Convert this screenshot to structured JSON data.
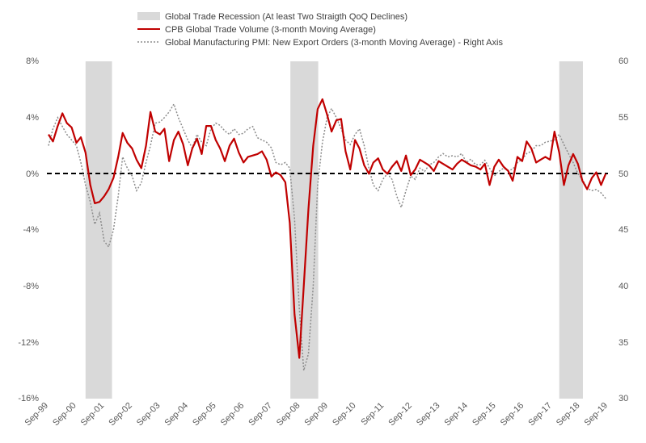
{
  "chart_data": {
    "type": "line",
    "legend": [
      {
        "key": "recession",
        "label": "Global Trade Recession (At least Two Straigth QoQ Declines)",
        "color": "#d9d9d9"
      },
      {
        "key": "volume",
        "label": "CPB Global Trade Volume (3-month Moving Average)",
        "color": "#c00000"
      },
      {
        "key": "pmi",
        "label": "Global Manufacturing PMI: New Export Orders (3-month Moving Average) - Right Axis",
        "color": "#8c8c8c"
      }
    ],
    "legend_position": "top-center",
    "x_ticks": [
      "Sep-99",
      "Sep-00",
      "Sep-01",
      "Sep-02",
      "Sep-03",
      "Sep-04",
      "Sep-05",
      "Sep-06",
      "Sep-07",
      "Sep-08",
      "Sep-09",
      "Sep-10",
      "Sep-11",
      "Sep-12",
      "Sep-13",
      "Sep-14",
      "Sep-15",
      "Sep-16",
      "Sep-17",
      "Sep-18",
      "Sep-19"
    ],
    "x_range": [
      1999.67,
      2019.75
    ],
    "y_left": {
      "ticks": [
        "8%",
        "4%",
        "0%",
        "-4%",
        "-8%",
        "-12%",
        "-16%"
      ],
      "values": [
        8,
        4,
        0,
        -4,
        -8,
        -12,
        -16
      ],
      "range": [
        -16,
        8
      ]
    },
    "y_right": {
      "ticks": [
        "60",
        "55",
        "50",
        "45",
        "40",
        "35",
        "30"
      ],
      "values": [
        60,
        55,
        50,
        45,
        40,
        35,
        30
      ],
      "range": [
        30,
        60
      ]
    },
    "zero_line": true,
    "grid": false,
    "recession_periods": [
      [
        2001.0,
        2001.95
      ],
      [
        2008.35,
        2009.35
      ],
      [
        2018.0,
        2018.85
      ]
    ],
    "series": [
      {
        "key": "volume",
        "name": "CPB Global Trade Volume (3-month Moving Average)",
        "axis": "left",
        "x": [
          1999.67,
          1999.83,
          2000.0,
          2000.17,
          2000.33,
          2000.5,
          2000.67,
          2000.83,
          2001.0,
          2001.17,
          2001.33,
          2001.5,
          2001.67,
          2001.83,
          2002.0,
          2002.17,
          2002.33,
          2002.5,
          2002.67,
          2002.83,
          2003.0,
          2003.17,
          2003.33,
          2003.5,
          2003.67,
          2003.83,
          2004.0,
          2004.17,
          2004.33,
          2004.5,
          2004.67,
          2004.83,
          2005.0,
          2005.17,
          2005.33,
          2005.5,
          2005.67,
          2005.83,
          2006.0,
          2006.17,
          2006.33,
          2006.5,
          2006.67,
          2006.83,
          2007.0,
          2007.17,
          2007.33,
          2007.5,
          2007.67,
          2007.83,
          2008.0,
          2008.17,
          2008.33,
          2008.5,
          2008.67,
          2008.83,
          2009.0,
          2009.17,
          2009.33,
          2009.5,
          2009.67,
          2009.83,
          2010.0,
          2010.17,
          2010.33,
          2010.5,
          2010.67,
          2010.83,
          2011.0,
          2011.17,
          2011.33,
          2011.5,
          2011.67,
          2011.83,
          2012.0,
          2012.17,
          2012.33,
          2012.5,
          2012.67,
          2012.83,
          2013.0,
          2013.17,
          2013.33,
          2013.5,
          2013.67,
          2013.83,
          2014.0,
          2014.17,
          2014.33,
          2014.5,
          2014.67,
          2014.83,
          2015.0,
          2015.17,
          2015.33,
          2015.5,
          2015.67,
          2015.83,
          2016.0,
          2016.17,
          2016.33,
          2016.5,
          2016.67,
          2016.83,
          2017.0,
          2017.17,
          2017.33,
          2017.5,
          2017.67,
          2017.83,
          2018.0,
          2018.17,
          2018.33,
          2018.5,
          2018.67,
          2018.83,
          2019.0,
          2019.17,
          2019.33,
          2019.5,
          2019.67
        ],
        "values": [
          2.8,
          2.3,
          3.4,
          4.3,
          3.6,
          3.3,
          2.2,
          2.6,
          1.5,
          -0.8,
          -2.1,
          -2.0,
          -1.6,
          -1.1,
          -0.3,
          1.2,
          2.9,
          2.2,
          1.8,
          1.0,
          0.4,
          2.0,
          4.4,
          3.0,
          2.8,
          3.2,
          0.9,
          2.4,
          3.0,
          2.1,
          0.6,
          1.8,
          2.5,
          1.4,
          3.4,
          3.4,
          2.4,
          1.8,
          0.9,
          2.0,
          2.5,
          1.5,
          0.8,
          1.2,
          1.3,
          1.4,
          1.6,
          1.0,
          -0.2,
          0.1,
          -0.1,
          -0.6,
          -3.5,
          -10.0,
          -13.1,
          -8.0,
          -2.5,
          2.0,
          4.6,
          5.3,
          4.2,
          3.0,
          3.8,
          3.9,
          1.6,
          0.3,
          2.4,
          1.8,
          0.6,
          0.0,
          0.8,
          1.1,
          0.3,
          0.0,
          0.5,
          0.9,
          0.2,
          1.3,
          -0.1,
          0.3,
          1.0,
          0.8,
          0.6,
          0.2,
          0.9,
          0.7,
          0.5,
          0.3,
          0.7,
          1.0,
          0.8,
          0.6,
          0.5,
          0.3,
          0.7,
          -0.8,
          0.5,
          1.0,
          0.5,
          0.2,
          -0.5,
          1.2,
          0.9,
          2.3,
          1.8,
          0.8,
          1.0,
          1.2,
          1.0,
          3.0,
          1.5,
          -0.8,
          0.6,
          1.4,
          0.7,
          -0.5,
          -1.1,
          -0.3,
          0.1,
          -0.8,
          0.0
        ]
      },
      {
        "key": "pmi",
        "name": "Global Manufacturing PMI: New Export Orders (3-month Moving Average) - Right Axis",
        "axis": "right",
        "x": [
          1999.67,
          1999.83,
          2000.0,
          2000.17,
          2000.33,
          2000.5,
          2000.67,
          2000.83,
          2001.0,
          2001.17,
          2001.33,
          2001.5,
          2001.67,
          2001.83,
          2002.0,
          2002.17,
          2002.33,
          2002.5,
          2002.67,
          2002.83,
          2003.0,
          2003.17,
          2003.33,
          2003.5,
          2003.67,
          2003.83,
          2004.0,
          2004.17,
          2004.33,
          2004.5,
          2004.67,
          2004.83,
          2005.0,
          2005.17,
          2005.33,
          2005.5,
          2005.67,
          2005.83,
          2006.0,
          2006.17,
          2006.33,
          2006.5,
          2006.67,
          2006.83,
          2007.0,
          2007.17,
          2007.33,
          2007.5,
          2007.67,
          2007.83,
          2008.0,
          2008.17,
          2008.33,
          2008.5,
          2008.67,
          2008.83,
          2009.0,
          2009.17,
          2009.33,
          2009.5,
          2009.67,
          2009.83,
          2010.0,
          2010.17,
          2010.33,
          2010.5,
          2010.67,
          2010.83,
          2011.0,
          2011.17,
          2011.33,
          2011.5,
          2011.67,
          2011.83,
          2012.0,
          2012.17,
          2012.33,
          2012.5,
          2012.67,
          2012.83,
          2013.0,
          2013.17,
          2013.33,
          2013.5,
          2013.67,
          2013.83,
          2014.0,
          2014.17,
          2014.33,
          2014.5,
          2014.67,
          2014.83,
          2015.0,
          2015.17,
          2015.33,
          2015.5,
          2015.67,
          2015.83,
          2016.0,
          2016.17,
          2016.33,
          2016.5,
          2016.67,
          2016.83,
          2017.0,
          2017.17,
          2017.33,
          2017.5,
          2017.67,
          2017.83,
          2018.0,
          2018.17,
          2018.33,
          2018.5,
          2018.67,
          2018.83,
          2019.0,
          2019.17,
          2019.33,
          2019.5,
          2019.67
        ],
        "values": [
          52.5,
          54.0,
          55.0,
          54.2,
          53.5,
          53.0,
          52.5,
          51.0,
          49.0,
          47.5,
          45.5,
          46.5,
          44.0,
          43.5,
          45.0,
          48.0,
          51.5,
          50.5,
          49.8,
          48.5,
          49.2,
          51.0,
          52.5,
          54.5,
          54.6,
          55.0,
          55.5,
          56.2,
          55.0,
          54.0,
          53.0,
          52.3,
          53.5,
          52.8,
          52.5,
          54.0,
          54.5,
          54.3,
          53.8,
          53.5,
          54.0,
          53.5,
          53.6,
          54.0,
          54.2,
          53.2,
          53.0,
          52.8,
          52.3,
          51.0,
          50.8,
          51.0,
          50.5,
          46.0,
          38.0,
          32.5,
          34.0,
          40.0,
          49.0,
          52.8,
          55.0,
          55.8,
          55.0,
          54.0,
          53.0,
          52.6,
          53.5,
          54.0,
          52.5,
          50.5,
          49.0,
          48.5,
          49.5,
          50.0,
          49.5,
          48.0,
          47.0,
          48.5,
          49.8,
          49.5,
          50.5,
          50.2,
          50.8,
          51.0,
          51.5,
          51.8,
          51.5,
          51.6,
          51.5,
          51.8,
          51.0,
          51.3,
          50.8,
          50.8,
          51.2,
          50.5,
          49.8,
          50.2,
          50.5,
          50.3,
          50.4,
          51.0,
          51.3,
          51.8,
          52.0,
          52.5,
          52.5,
          52.8,
          52.9,
          53.0,
          53.5,
          52.6,
          51.8,
          51.0,
          50.0,
          49.5,
          48.7,
          48.5,
          48.6,
          48.3,
          47.8
        ]
      }
    ]
  }
}
